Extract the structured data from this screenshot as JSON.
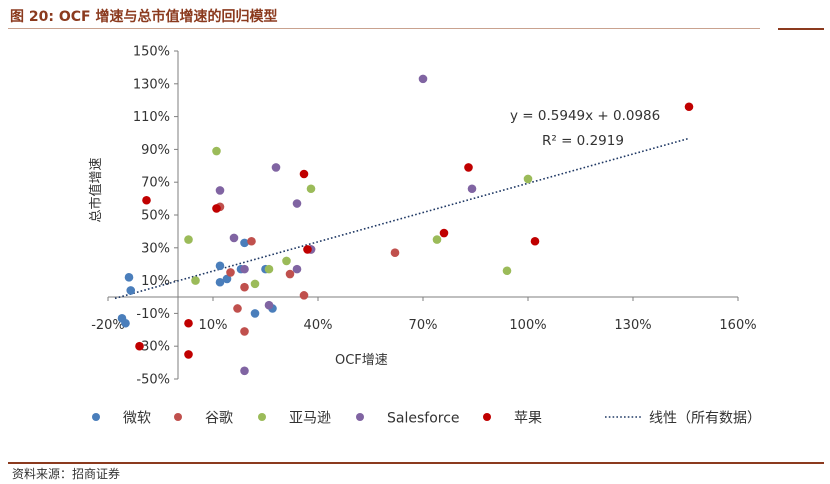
{
  "figure": {
    "header": "图 20:  OCF 增速与总市值增速的回归模型",
    "source": "资料来源：招商证券"
  },
  "chart_data": {
    "type": "scatter",
    "xlabel": "OCF增速",
    "ylabel": "总市值增速",
    "xlim": [
      -0.2,
      1.6
    ],
    "ylim": [
      -0.5,
      1.5
    ],
    "x_ticks": [
      "-20%",
      "10%",
      "40%",
      "70%",
      "100%",
      "130%",
      "160%"
    ],
    "y_ticks": [
      "150%",
      "130%",
      "110%",
      "90%",
      "70%",
      "50%",
      "30%",
      "10%",
      "-10%",
      "-30%",
      "-50%"
    ],
    "grid": false,
    "legend_position": "bottom",
    "colors": {
      "微软": "#4a7ebb",
      "谷歌": "#c0504d",
      "亚马逊": "#9bbb59",
      "Salesforce": "#8064a2",
      "苹果": "#c00000",
      "trend": "#1f3864"
    },
    "series": [
      {
        "name": "微软",
        "points": [
          [
            -0.14,
            0.12
          ],
          [
            -0.135,
            0.04
          ],
          [
            -0.16,
            -0.13
          ],
          [
            -0.15,
            -0.16
          ],
          [
            0.12,
            0.19
          ],
          [
            0.12,
            0.09
          ],
          [
            0.14,
            0.11
          ],
          [
            0.18,
            0.17
          ],
          [
            0.19,
            0.33
          ],
          [
            0.25,
            0.17
          ],
          [
            0.22,
            -0.1
          ],
          [
            0.27,
            -0.07
          ]
        ]
      },
      {
        "name": "谷歌",
        "points": [
          [
            0.15,
            0.15
          ],
          [
            0.17,
            -0.07
          ],
          [
            0.19,
            -0.21
          ],
          [
            0.19,
            0.06
          ],
          [
            0.21,
            0.34
          ],
          [
            0.32,
            0.14
          ],
          [
            0.36,
            0.01
          ],
          [
            0.38,
            0.29
          ],
          [
            0.62,
            0.27
          ],
          [
            0.12,
            0.55
          ]
        ]
      },
      {
        "name": "亚马逊",
        "points": [
          [
            0.11,
            0.89
          ],
          [
            0.03,
            0.35
          ],
          [
            0.05,
            0.1
          ],
          [
            0.22,
            0.08
          ],
          [
            0.26,
            0.17
          ],
          [
            0.31,
            0.22
          ],
          [
            0.38,
            0.66
          ],
          [
            0.74,
            0.35
          ],
          [
            0.94,
            0.16
          ],
          [
            1.0,
            0.72
          ]
        ]
      },
      {
        "name": "Salesforce",
        "points": [
          [
            0.12,
            0.65
          ],
          [
            0.16,
            0.36
          ],
          [
            0.19,
            0.17
          ],
          [
            0.19,
            -0.45
          ],
          [
            0.26,
            -0.05
          ],
          [
            0.28,
            0.79
          ],
          [
            0.34,
            0.57
          ],
          [
            0.34,
            0.17
          ],
          [
            0.38,
            0.29
          ],
          [
            0.7,
            1.33
          ],
          [
            0.84,
            0.66
          ]
        ]
      },
      {
        "name": "苹果",
        "points": [
          [
            -0.09,
            0.59
          ],
          [
            -0.11,
            -0.3
          ],
          [
            0.03,
            -0.16
          ],
          [
            0.03,
            -0.35
          ],
          [
            0.11,
            0.54
          ],
          [
            0.36,
            0.75
          ],
          [
            0.37,
            0.29
          ],
          [
            0.76,
            0.39
          ],
          [
            0.83,
            0.79
          ],
          [
            1.02,
            0.34
          ],
          [
            1.46,
            1.16
          ]
        ]
      }
    ],
    "trendline": {
      "name": "线性（所有数据）",
      "slope": 0.5949,
      "intercept": 0.0986,
      "x_range": [
        -0.18,
        1.46
      ],
      "equation": "y = 0.5949x + 0.0986",
      "r2": "R² = 0.2919"
    }
  }
}
